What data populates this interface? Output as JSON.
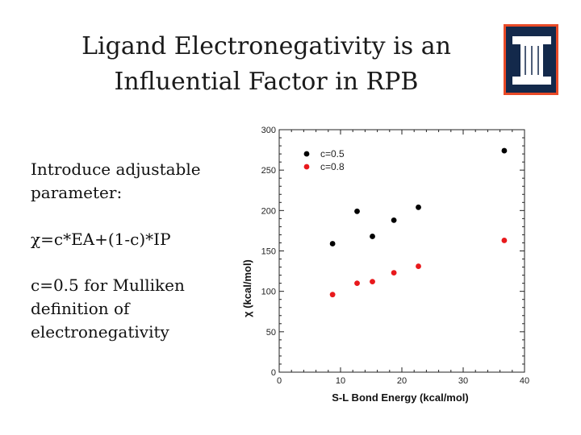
{
  "slide": {
    "title_line1": "Ligand Electronegativity is an",
    "title_line2": "Influential Factor in RPB",
    "text_intro": "Introduce adjustable parameter:",
    "text_formula": "χ=c*EA+(1-c)*IP",
    "text_mulliken": "c=0.5 for Mulliken definition of electronegativity",
    "logo_icon": "university-block-i-logo",
    "colors": {
      "logo_bg": "#13294b",
      "logo_accent": "#e84a27"
    }
  },
  "chart_data": {
    "type": "scatter",
    "title": "",
    "xlabel": "S-L Bond Energy (kcal/mol)",
    "ylabel": "χ (kcal/mol)",
    "xlim": [
      0,
      40
    ],
    "ylim": [
      0,
      300
    ],
    "x_ticks": [
      0,
      10,
      20,
      30,
      40
    ],
    "y_ticks": [
      0,
      50,
      100,
      150,
      200,
      250,
      300
    ],
    "legend_position": "top-left",
    "series": [
      {
        "name": "c=0.5",
        "color": "#000000",
        "x": [
          8.7,
          12.7,
          15.2,
          18.7,
          22.7,
          36.7
        ],
        "y": [
          159,
          199,
          168,
          188,
          204,
          274
        ]
      },
      {
        "name": "c=0.8",
        "color": "#e8191c",
        "x": [
          8.7,
          12.7,
          15.2,
          18.7,
          22.7,
          36.7
        ],
        "y": [
          96,
          110,
          112,
          123,
          131,
          163
        ]
      }
    ]
  }
}
